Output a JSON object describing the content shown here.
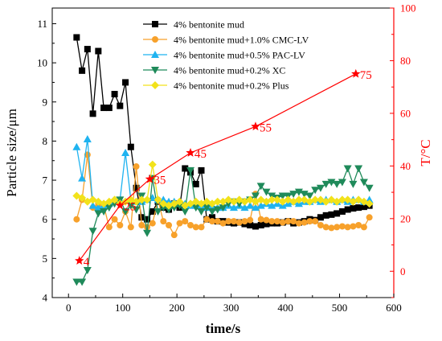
{
  "chart_data": {
    "type": "line",
    "xlabel": "time/s",
    "ylabel": "Particle size/μm",
    "y2label": "T/°C",
    "xlim": [
      -30,
      600
    ],
    "ylim": [
      4,
      11.4
    ],
    "y2lim": [
      -10,
      100
    ],
    "xticks": [
      "0",
      "100",
      "200",
      "300",
      "400",
      "500",
      "600"
    ],
    "yticks": [
      "4",
      "5",
      "6",
      "7",
      "8",
      "9",
      "10",
      "11"
    ],
    "y2ticks": [
      "0",
      "20",
      "40",
      "60",
      "80",
      "100"
    ],
    "legend_position": "top-right",
    "colors": {
      "temperature": "#ff0000",
      "axis": "#000000",
      "right_axis": "#ff0000"
    },
    "series": [
      {
        "name": "4% bentonite mud",
        "color": "#000000",
        "marker": "square",
        "x": [
          15,
          25,
          35,
          45,
          55,
          65,
          75,
          85,
          95,
          105,
          115,
          125,
          135,
          145,
          155,
          165,
          175,
          185,
          195,
          205,
          215,
          225,
          235,
          245,
          255,
          265,
          275,
          285,
          295,
          305,
          315,
          325,
          335,
          345,
          355,
          365,
          375,
          385,
          395,
          405,
          415,
          425,
          435,
          445,
          455,
          465,
          475,
          485,
          495,
          505,
          515,
          525,
          535,
          545,
          555
        ],
        "values": [
          10.65,
          9.8,
          10.35,
          8.7,
          10.3,
          8.85,
          8.85,
          9.2,
          8.9,
          9.5,
          7.85,
          6.8,
          6.05,
          6.0,
          6.2,
          6.45,
          6.3,
          6.25,
          6.4,
          6.3,
          7.3,
          7.2,
          6.9,
          7.25,
          6.0,
          6.05,
          5.95,
          5.95,
          5.92,
          5.9,
          5.92,
          5.88,
          5.85,
          5.82,
          5.85,
          5.88,
          5.9,
          5.9,
          5.92,
          5.95,
          5.9,
          5.92,
          5.95,
          6.0,
          5.98,
          6.05,
          6.1,
          6.12,
          6.15,
          6.2,
          6.25,
          6.28,
          6.3,
          6.32,
          6.35
        ]
      },
      {
        "name": "4% bentonite mud+1.0% CMC-LV",
        "color": "#f7a12b",
        "marker": "circle",
        "x": [
          15,
          25,
          35,
          45,
          55,
          65,
          75,
          85,
          95,
          105,
          115,
          125,
          135,
          145,
          155,
          165,
          175,
          185,
          195,
          205,
          215,
          225,
          235,
          245,
          255,
          265,
          275,
          285,
          295,
          305,
          315,
          325,
          335,
          345,
          355,
          365,
          375,
          385,
          395,
          405,
          415,
          425,
          435,
          445,
          455,
          465,
          475,
          485,
          495,
          505,
          515,
          525,
          535,
          545,
          555
        ],
        "values": [
          6.0,
          6.5,
          7.65,
          6.3,
          6.4,
          6.35,
          5.8,
          6.0,
          5.85,
          6.2,
          5.8,
          7.35,
          5.85,
          5.8,
          5.9,
          6.5,
          5.95,
          5.85,
          5.6,
          5.9,
          5.95,
          5.85,
          5.8,
          5.8,
          6.0,
          5.95,
          5.95,
          5.9,
          5.95,
          5.95,
          5.92,
          5.95,
          5.98,
          6.65,
          6.0,
          5.98,
          5.95,
          5.95,
          5.92,
          5.95,
          5.95,
          5.9,
          5.92,
          5.95,
          5.95,
          5.85,
          5.8,
          5.78,
          5.8,
          5.82,
          5.8,
          5.82,
          5.85,
          5.8,
          6.05
        ]
      },
      {
        "name": "4% bentonite mud+0.5% PAC-LV",
        "color": "#1fb3f0",
        "marker": "triangle-up",
        "x": [
          15,
          25,
          35,
          45,
          55,
          65,
          75,
          85,
          95,
          105,
          115,
          125,
          135,
          145,
          155,
          165,
          175,
          185,
          195,
          205,
          215,
          225,
          235,
          245,
          255,
          265,
          275,
          285,
          295,
          305,
          315,
          325,
          335,
          345,
          355,
          365,
          375,
          385,
          395,
          405,
          415,
          425,
          435,
          445,
          455,
          465,
          475,
          485,
          495,
          505,
          515,
          525,
          535,
          545,
          555
        ],
        "values": [
          7.85,
          7.05,
          8.05,
          6.35,
          6.3,
          6.35,
          6.4,
          6.45,
          6.5,
          7.7,
          6.5,
          6.45,
          6.45,
          6.5,
          6.55,
          6.5,
          6.5,
          6.45,
          6.45,
          6.4,
          6.4,
          6.35,
          6.35,
          6.35,
          6.3,
          6.35,
          6.3,
          6.3,
          6.35,
          6.3,
          6.35,
          6.3,
          6.35,
          6.3,
          6.35,
          6.4,
          6.35,
          6.4,
          6.35,
          6.4,
          6.45,
          6.4,
          6.45,
          6.45,
          6.5,
          6.45,
          6.5,
          6.5,
          6.45,
          6.5,
          6.45,
          6.5,
          6.5,
          6.45,
          6.5
        ]
      },
      {
        "name": "4% bentonite mud+0.2% XC",
        "color": "#1f8a5a",
        "marker": "triangle-down",
        "x": [
          15,
          25,
          35,
          45,
          55,
          65,
          75,
          85,
          95,
          105,
          115,
          125,
          135,
          145,
          155,
          165,
          175,
          185,
          195,
          205,
          215,
          225,
          235,
          245,
          255,
          265,
          275,
          285,
          295,
          305,
          315,
          325,
          335,
          345,
          355,
          365,
          375,
          385,
          395,
          405,
          415,
          425,
          435,
          445,
          455,
          465,
          475,
          485,
          495,
          505,
          515,
          525,
          535,
          545,
          555
        ],
        "values": [
          4.4,
          4.4,
          4.7,
          5.7,
          6.15,
          6.2,
          6.3,
          6.4,
          6.5,
          6.2,
          6.35,
          6.25,
          6.6,
          5.65,
          7.05,
          6.2,
          6.3,
          6.25,
          6.3,
          6.35,
          6.2,
          7.25,
          6.3,
          6.2,
          6.3,
          6.2,
          6.25,
          6.3,
          6.4,
          6.45,
          6.4,
          6.45,
          6.5,
          6.6,
          6.85,
          6.7,
          6.6,
          6.55,
          6.6,
          6.6,
          6.65,
          6.7,
          6.65,
          6.6,
          6.75,
          6.8,
          6.9,
          6.95,
          6.9,
          6.95,
          7.3,
          6.9,
          7.3,
          6.95,
          6.8
        ]
      },
      {
        "name": "4% bentonite mud+0.2% Plus",
        "color": "#f2e21a",
        "marker": "diamond",
        "x": [
          15,
          25,
          35,
          45,
          55,
          65,
          75,
          85,
          95,
          105,
          115,
          125,
          135,
          145,
          155,
          165,
          175,
          185,
          195,
          205,
          215,
          225,
          235,
          245,
          255,
          265,
          275,
          285,
          295,
          305,
          315,
          325,
          335,
          345,
          355,
          365,
          375,
          385,
          395,
          405,
          415,
          425,
          435,
          445,
          455,
          465,
          475,
          485,
          495,
          505,
          515,
          525,
          535,
          545,
          555
        ],
        "values": [
          6.6,
          6.55,
          6.45,
          6.5,
          6.45,
          6.4,
          6.45,
          6.5,
          6.4,
          6.45,
          6.5,
          6.45,
          6.5,
          6.5,
          7.4,
          6.5,
          6.4,
          6.35,
          6.4,
          6.45,
          6.35,
          6.4,
          6.45,
          6.4,
          6.45,
          6.4,
          6.45,
          6.45,
          6.5,
          6.45,
          6.5,
          6.45,
          6.5,
          6.45,
          6.5,
          6.45,
          6.5,
          6.5,
          6.45,
          6.5,
          6.45,
          6.5,
          6.5,
          6.45,
          6.5,
          6.5,
          6.45,
          6.5,
          6.45,
          6.5,
          6.5,
          6.45,
          6.5,
          6.45,
          6.4
        ]
      }
    ],
    "temperature_series": {
      "axis": "right",
      "color": "#ff0000",
      "marker": "star",
      "x": [
        20,
        95,
        150,
        225,
        345,
        530
      ],
      "values": [
        4,
        25,
        35,
        45,
        55,
        75
      ],
      "labels": [
        "4",
        "25",
        "35",
        "45",
        "55",
        "75"
      ]
    }
  }
}
